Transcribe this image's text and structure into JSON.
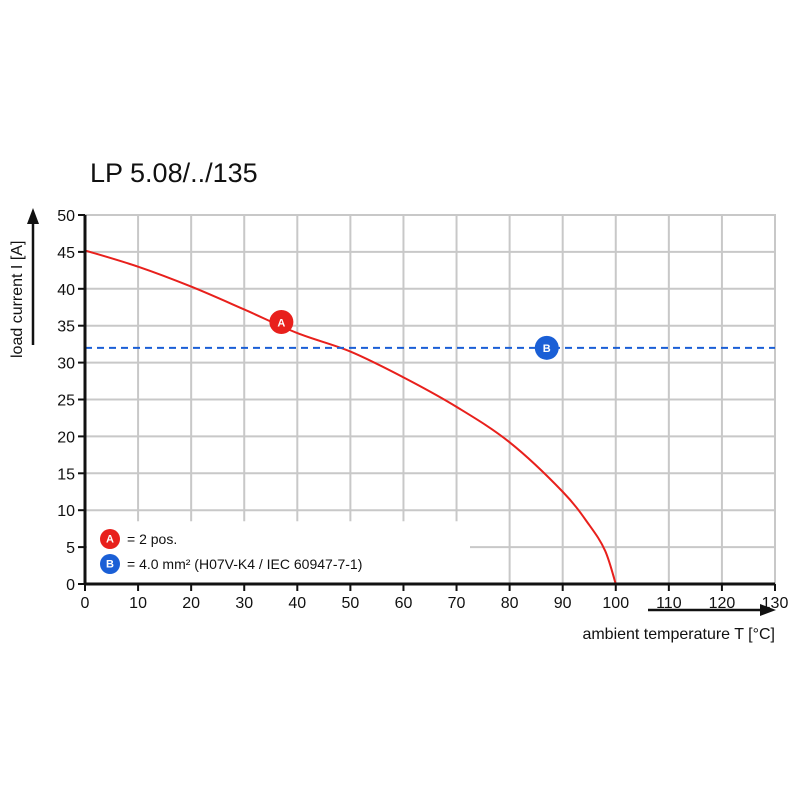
{
  "chart_data": {
    "type": "line",
    "title": "LP 5.08/../135",
    "xlabel": "ambient temperature T [°C]",
    "ylabel": "load current I [A]",
    "xlim": [
      0,
      130
    ],
    "ylim": [
      0,
      50
    ],
    "x_ticks": [
      0,
      10,
      20,
      30,
      40,
      50,
      60,
      70,
      80,
      90,
      100,
      110,
      120,
      130
    ],
    "y_ticks": [
      0,
      5,
      10,
      15,
      20,
      25,
      30,
      35,
      40,
      45,
      50
    ],
    "grid": true,
    "series": [
      {
        "marker": "A",
        "color": "#e8201c",
        "style": "solid",
        "x": [
          0,
          10,
          20,
          30,
          40,
          50,
          60,
          70,
          80,
          90,
          95,
          98,
          100
        ],
        "y": [
          45.2,
          43,
          40.3,
          37.2,
          34,
          31.5,
          28,
          24,
          19.2,
          12.5,
          8,
          4.5,
          0
        ]
      },
      {
        "marker": "B",
        "color": "#1a5fd6",
        "style": "dashed",
        "x": [
          0,
          130
        ],
        "y": [
          32,
          32
        ]
      }
    ],
    "markers": [
      {
        "label": "A",
        "x": 37,
        "y": 35.5,
        "color": "#e8201c"
      },
      {
        "label": "B",
        "x": 87,
        "y": 32,
        "color": "#1a5fd6"
      }
    ],
    "legend": {
      "position": "bottom-left",
      "entries": [
        {
          "marker": "A",
          "text": "= 2 pos.",
          "color": "#e8201c"
        },
        {
          "marker": "B",
          "text": "= 4.0 mm² (H07V-K4 / IEC 60947-7-1)",
          "color": "#1a5fd6"
        }
      ]
    }
  }
}
